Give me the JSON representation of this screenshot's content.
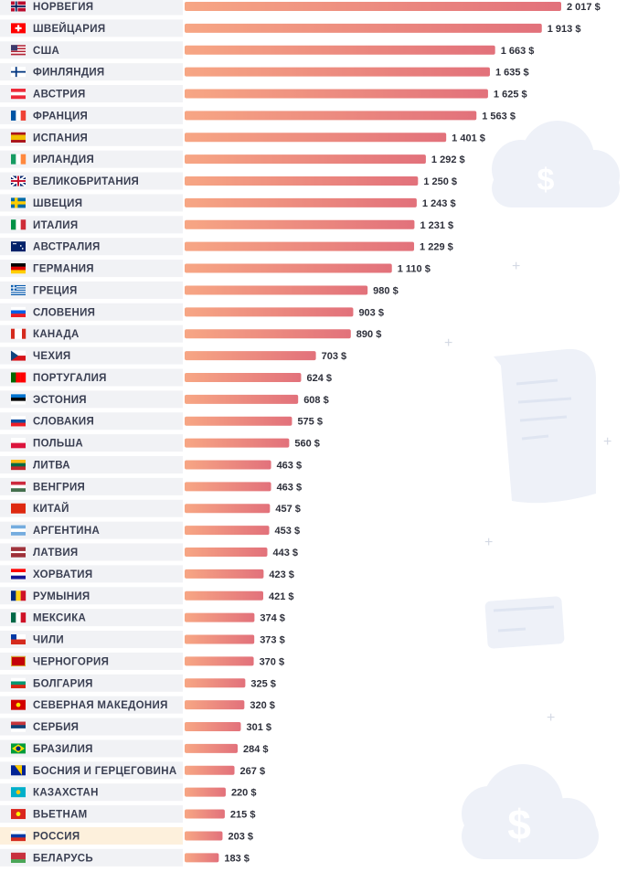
{
  "chart_data": {
    "type": "bar",
    "orientation": "horizontal",
    "categories": [
      "НОРВЕГИЯ",
      "ШВЕЙЦАРИЯ",
      "США",
      "ФИНЛЯНДИЯ",
      "АВСТРИЯ",
      "ФРАНЦИЯ",
      "ИСПАНИЯ",
      "ИРЛАНДИЯ",
      "ВЕЛИКОБРИТАНИЯ",
      "ШВЕЦИЯ",
      "ИТАЛИЯ",
      "АВСТРАЛИЯ",
      "ГЕРМАНИЯ",
      "ГРЕЦИЯ",
      "СЛОВЕНИЯ",
      "КАНАДА",
      "ЧЕХИЯ",
      "ПОРТУГАЛИЯ",
      "ЭСТОНИЯ",
      "СЛОВАКИЯ",
      "ПОЛЬША",
      "ЛИТВА",
      "ВЕНГРИЯ",
      "КИТАЙ",
      "АРГЕНТИНА",
      "ЛАТВИЯ",
      "ХОРВАТИЯ",
      "РУМЫНИЯ",
      "МЕКСИКА",
      "ЧИЛИ",
      "ЧЕРНОГОРИЯ",
      "БОЛГАРИЯ",
      "СЕВЕРНАЯ МАКЕДОНИЯ",
      "СЕРБИЯ",
      "БРАЗИЛИЯ",
      "БОСНИЯ И ГЕРЦЕГОВИНА",
      "КАЗАХСТАН",
      "ВЬЕТНАМ",
      "РОССИЯ",
      "БЕЛАРУСЬ"
    ],
    "values": [
      2017,
      1913,
      1663,
      1635,
      1625,
      1563,
      1401,
      1292,
      1250,
      1243,
      1231,
      1229,
      1110,
      980,
      903,
      890,
      703,
      624,
      608,
      575,
      560,
      463,
      463,
      457,
      453,
      443,
      423,
      421,
      374,
      373,
      370,
      325,
      320,
      301,
      284,
      267,
      220,
      215,
      203,
      183
    ],
    "value_labels": [
      "2 017 $",
      "1 913 $",
      "1 663 $",
      "1 635 $",
      "1 625 $",
      "1 563 $",
      "1 401 $",
      "1 292 $",
      "1 250 $",
      "1 243 $",
      "1 231 $",
      "1 229 $",
      "1 110 $",
      "980 $",
      "903 $",
      "890 $",
      "703 $",
      "624 $",
      "608 $",
      "575 $",
      "560 $",
      "463 $",
      "463 $",
      "457 $",
      "453 $",
      "443 $",
      "423 $",
      "421 $",
      "374 $",
      "373 $",
      "370 $",
      "325 $",
      "320 $",
      "301 $",
      "284 $",
      "267 $",
      "220 $",
      "215 $",
      "203 $",
      "183 $"
    ],
    "flag_icons": [
      "norway-flag-icon",
      "switzerland-flag-icon",
      "usa-flag-icon",
      "finland-flag-icon",
      "austria-flag-icon",
      "france-flag-icon",
      "spain-flag-icon",
      "ireland-flag-icon",
      "uk-flag-icon",
      "sweden-flag-icon",
      "italy-flag-icon",
      "australia-flag-icon",
      "germany-flag-icon",
      "greece-flag-icon",
      "slovenia-flag-icon",
      "canada-flag-icon",
      "czechia-flag-icon",
      "portugal-flag-icon",
      "estonia-flag-icon",
      "slovakia-flag-icon",
      "poland-flag-icon",
      "lithuania-flag-icon",
      "hungary-flag-icon",
      "china-flag-icon",
      "argentina-flag-icon",
      "latvia-flag-icon",
      "croatia-flag-icon",
      "romania-flag-icon",
      "mexico-flag-icon",
      "chile-flag-icon",
      "montenegro-flag-icon",
      "bulgaria-flag-icon",
      "north-macedonia-flag-icon",
      "serbia-flag-icon",
      "brazil-flag-icon",
      "bosnia-flag-icon",
      "kazakhstan-flag-icon",
      "vietnam-flag-icon",
      "russia-flag-icon",
      "belarus-flag-icon"
    ],
    "highlight_category": "РОССИЯ",
    "xlim": [
      0,
      2017
    ],
    "grid": false,
    "bar_gradient": [
      "#f7a684",
      "#e2717b"
    ],
    "row_background": "#f1f2f5",
    "highlight_background": "#fdf0dc"
  },
  "decorations": {
    "dollar_symbol": "$"
  }
}
